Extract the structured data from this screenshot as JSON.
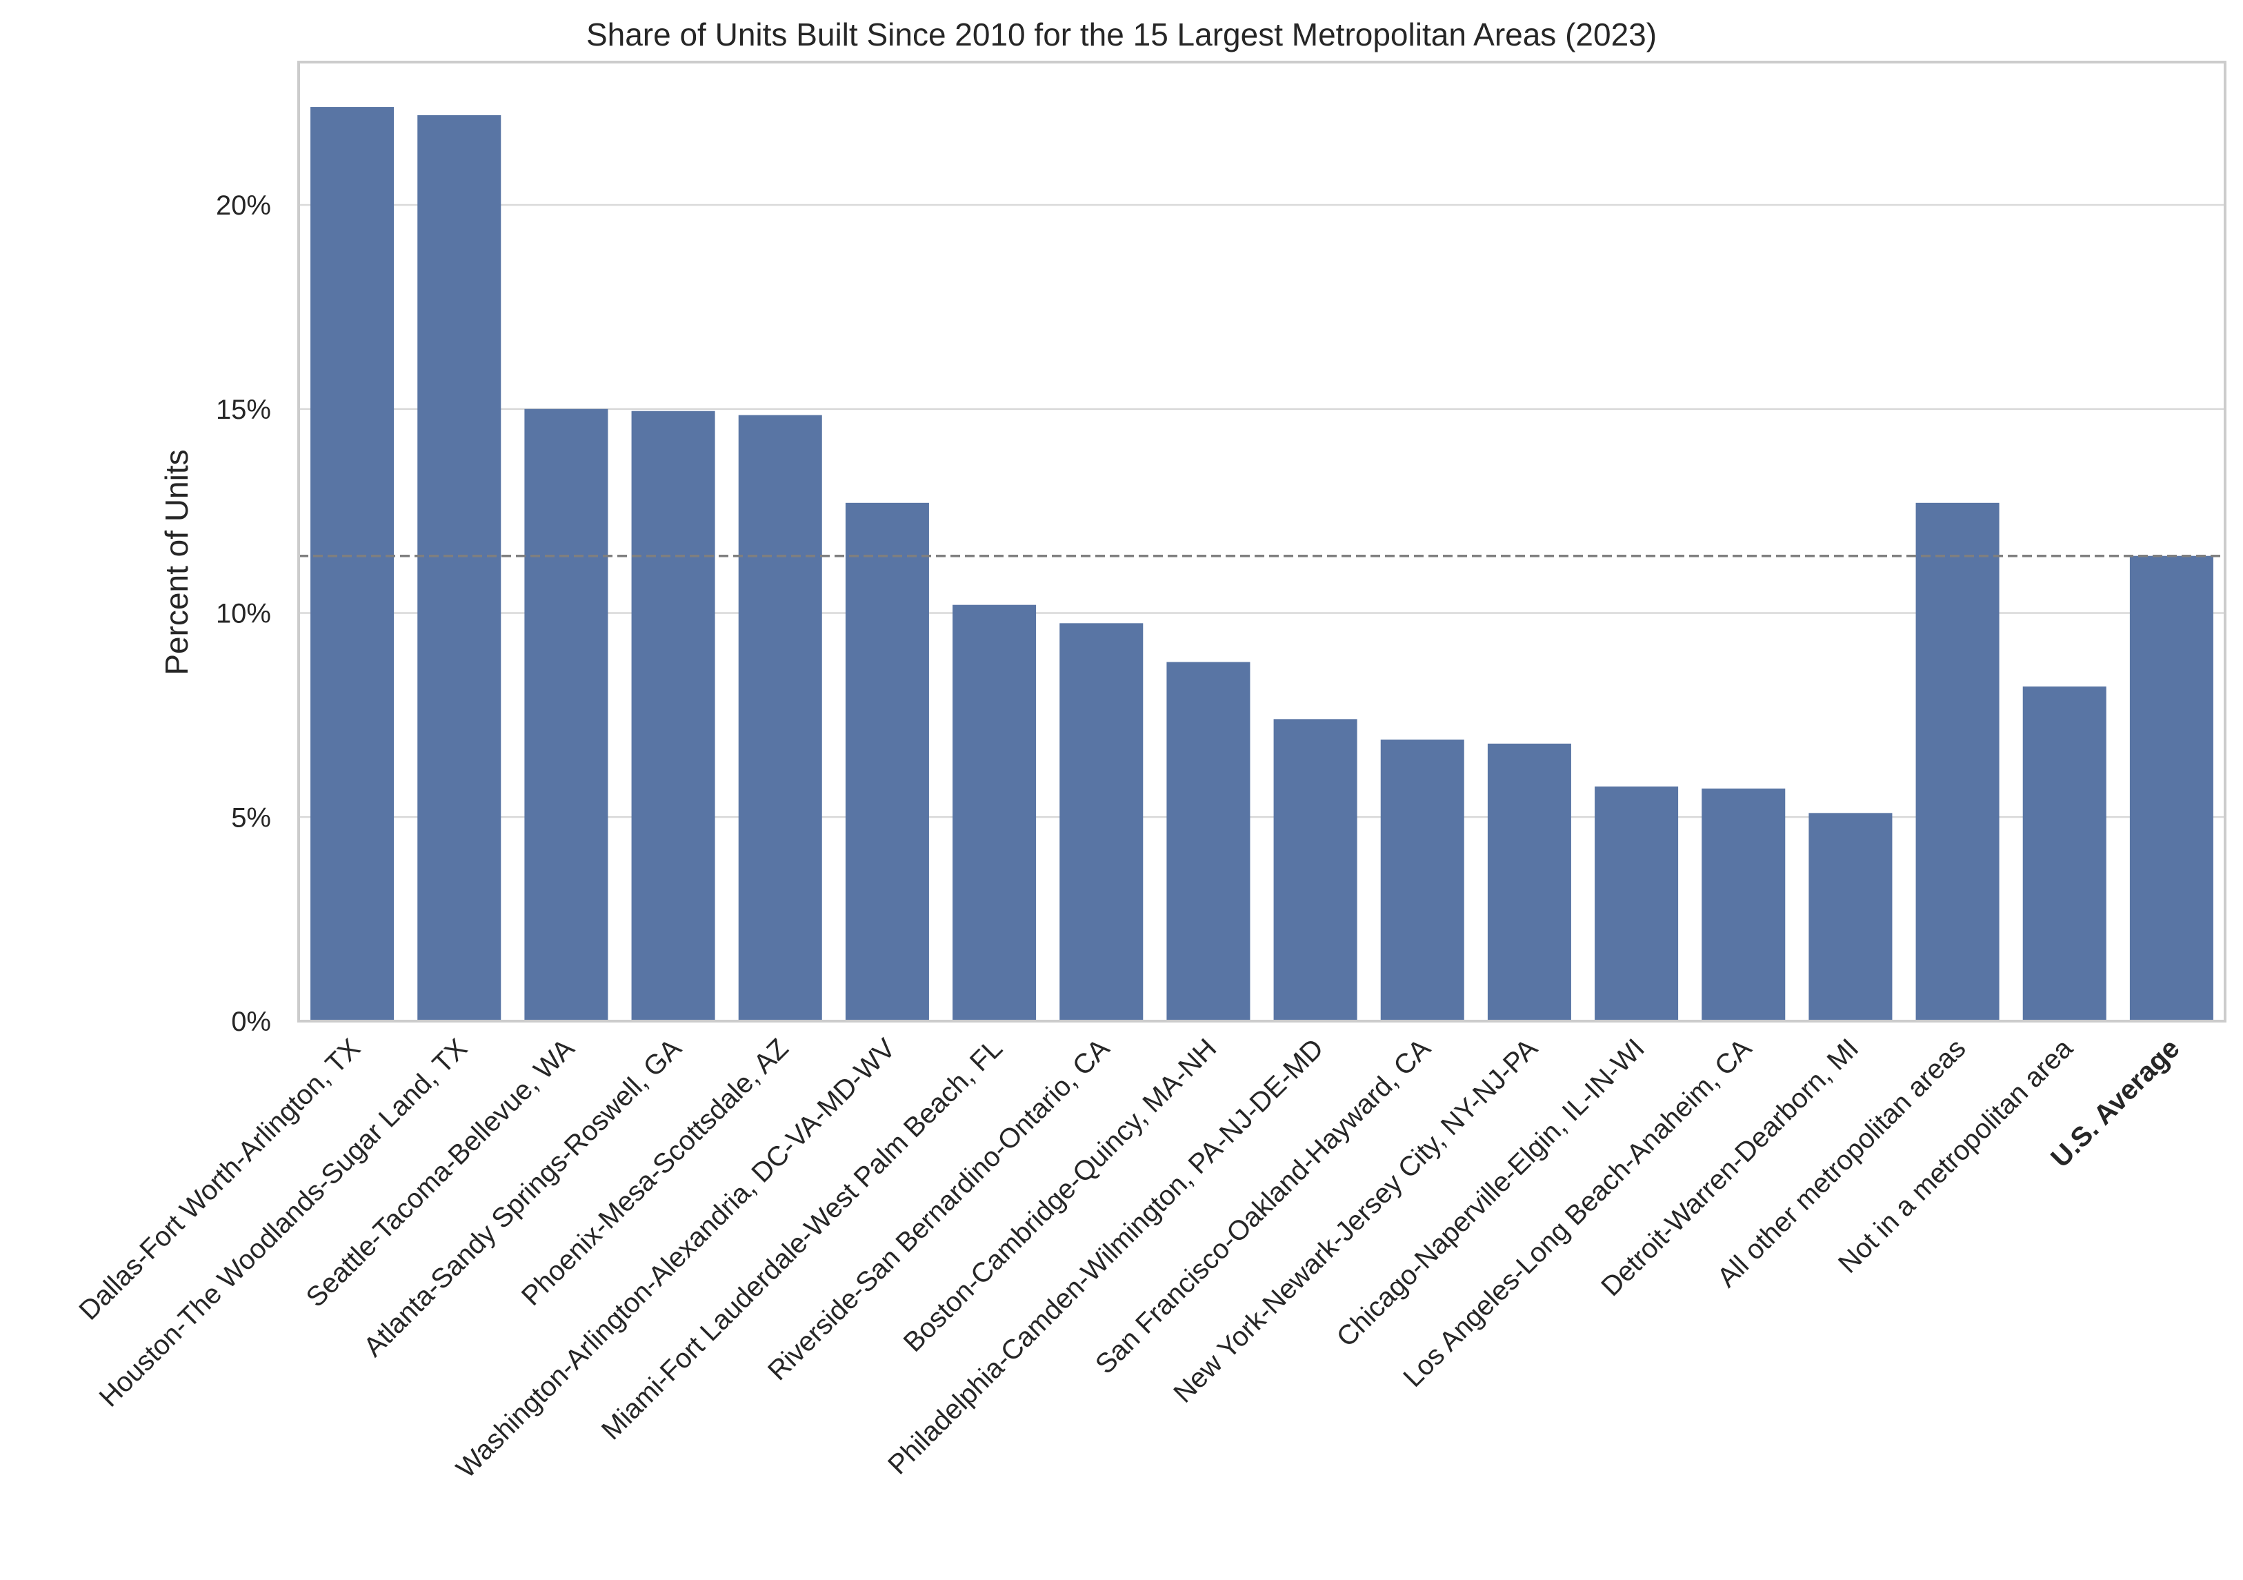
{
  "chart_data": {
    "type": "bar",
    "title": "Share of Units Built Since 2010 for the 15 Largest Metropolitan Areas (2023)",
    "xlabel": "",
    "ylabel": "Percent of Units",
    "ylim": [
      0,
      23.5
    ],
    "y_ticks": [
      0,
      5,
      10,
      15,
      20
    ],
    "y_tick_labels": [
      "0%",
      "5%",
      "10%",
      "15%",
      "20%"
    ],
    "categories": [
      "Dallas-Fort Worth-Arlington, TX",
      "Houston-The Woodlands-Sugar Land, TX",
      "Seattle-Tacoma-Bellevue, WA",
      "Atlanta-Sandy Springs-Roswell, GA",
      "Phoenix-Mesa-Scottsdale, AZ",
      "Washington-Arlington-Alexandria, DC-VA-MD-WV",
      "Miami-Fort Lauderdale-West Palm Beach, FL",
      "Riverside-San Bernardino-Ontario, CA",
      "Boston-Cambridge-Quincy, MA-NH",
      "Philadelphia-Camden-Wilmington, PA-NJ-DE-MD",
      "San Francisco-Oakland-Hayward, CA",
      "New York-Newark-Jersey City, NY-NJ-PA",
      "Chicago-Naperville-Elgin, IL-IN-WI",
      "Los Angeles-Long Beach-Anaheim, CA",
      "Detroit-Warren-Dearborn, MI",
      "All other metropolitan areas",
      "Not in a metropolitan area",
      "U.S. Average"
    ],
    "values": [
      22.4,
      22.2,
      15.0,
      14.95,
      14.85,
      12.7,
      10.2,
      9.75,
      8.8,
      7.4,
      6.9,
      6.8,
      5.75,
      5.7,
      5.1,
      12.7,
      8.2,
      11.4
    ],
    "bold_categories": [
      "U.S. Average"
    ],
    "reference_line": {
      "value": 11.4,
      "style": "dashed"
    },
    "bar_color": "#5975a4",
    "grid": "horizontal"
  }
}
